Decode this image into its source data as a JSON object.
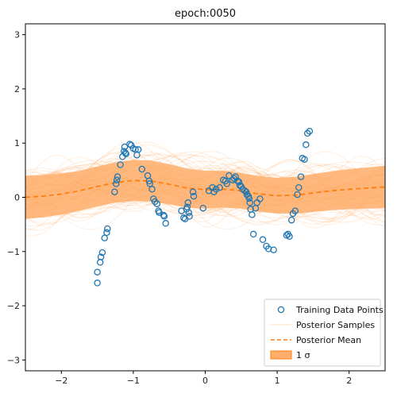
{
  "chart_data": {
    "type": "scatter",
    "title": "epoch:0050",
    "xlabel": "",
    "ylabel": "",
    "xlim": [
      -2.5,
      2.5
    ],
    "ylim": [
      -3.2,
      3.2
    ],
    "xticks": [
      -2,
      -1,
      0,
      1,
      2
    ],
    "yticks": [
      -3,
      -2,
      -1,
      0,
      1,
      2,
      3
    ],
    "grid": false,
    "legend_position": "lower-right",
    "colors": {
      "training_points": "#1f77b4",
      "posterior_samples": "#ff7f0e",
      "posterior_mean": "#ff7f0e",
      "band": "#ffae6b"
    },
    "series": [
      {
        "name": "Training Data Points",
        "kind": "scatter",
        "points": [
          [
            -1.5,
            -1.58
          ],
          [
            -1.5,
            -1.38
          ],
          [
            -1.46,
            -1.2
          ],
          [
            -1.45,
            -1.1
          ],
          [
            -1.43,
            -1.02
          ],
          [
            -1.4,
            -0.75
          ],
          [
            -1.37,
            -0.65
          ],
          [
            -1.36,
            -0.58
          ],
          [
            -1.26,
            0.1
          ],
          [
            -1.24,
            0.25
          ],
          [
            -1.23,
            0.32
          ],
          [
            -1.22,
            0.38
          ],
          [
            -1.18,
            0.6
          ],
          [
            -1.15,
            0.75
          ],
          [
            -1.13,
            0.85
          ],
          [
            -1.12,
            0.93
          ],
          [
            -1.11,
            0.82
          ],
          [
            -1.1,
            0.8
          ],
          [
            -1.05,
            0.98
          ],
          [
            -1.03,
            0.96
          ],
          [
            -1.0,
            0.9
          ],
          [
            -0.97,
            0.88
          ],
          [
            -0.95,
            0.78
          ],
          [
            -0.93,
            0.88
          ],
          [
            -0.88,
            0.52
          ],
          [
            -0.8,
            0.4
          ],
          [
            -0.78,
            0.3
          ],
          [
            -0.77,
            0.25
          ],
          [
            -0.74,
            0.15
          ],
          [
            -0.72,
            -0.03
          ],
          [
            -0.7,
            -0.08
          ],
          [
            -0.67,
            -0.12
          ],
          [
            -0.65,
            -0.25
          ],
          [
            -0.64,
            -0.28
          ],
          [
            -0.58,
            -0.33
          ],
          [
            -0.57,
            -0.35
          ],
          [
            -0.55,
            -0.48
          ],
          [
            -0.33,
            -0.25
          ],
          [
            -0.3,
            -0.38
          ],
          [
            -0.28,
            -0.4
          ],
          [
            -0.26,
            -0.22
          ],
          [
            -0.25,
            -0.18
          ],
          [
            -0.24,
            -0.1
          ],
          [
            -0.23,
            -0.28
          ],
          [
            -0.22,
            -0.35
          ],
          [
            -0.17,
            0.1
          ],
          [
            -0.16,
            0.02
          ],
          [
            -0.03,
            -0.2
          ],
          [
            0.05,
            0.12
          ],
          [
            0.1,
            0.18
          ],
          [
            0.12,
            0.1
          ],
          [
            0.15,
            0.15
          ],
          [
            0.2,
            0.18
          ],
          [
            0.25,
            0.32
          ],
          [
            0.28,
            0.3
          ],
          [
            0.3,
            0.25
          ],
          [
            0.33,
            0.4
          ],
          [
            0.38,
            0.32
          ],
          [
            0.4,
            0.35
          ],
          [
            0.42,
            0.38
          ],
          [
            0.45,
            0.3
          ],
          [
            0.47,
            0.28
          ],
          [
            0.48,
            0.22
          ],
          [
            0.5,
            0.2
          ],
          [
            0.52,
            0.15
          ],
          [
            0.55,
            0.12
          ],
          [
            0.57,
            0.1
          ],
          [
            0.58,
            0.05
          ],
          [
            0.6,
            0.02
          ],
          [
            0.61,
            -0.02
          ],
          [
            0.62,
            -0.1
          ],
          [
            0.63,
            -0.22
          ],
          [
            0.65,
            -0.32
          ],
          [
            0.67,
            -0.68
          ],
          [
            0.7,
            -0.2
          ],
          [
            0.72,
            -0.1
          ],
          [
            0.76,
            -0.03
          ],
          [
            0.8,
            -0.78
          ],
          [
            0.85,
            -0.9
          ],
          [
            0.88,
            -0.95
          ],
          [
            0.95,
            -0.97
          ],
          [
            1.13,
            -0.7
          ],
          [
            1.15,
            -0.68
          ],
          [
            1.17,
            -0.72
          ],
          [
            1.2,
            -0.42
          ],
          [
            1.22,
            -0.3
          ],
          [
            1.25,
            -0.25
          ],
          [
            1.28,
            0.05
          ],
          [
            1.3,
            0.18
          ],
          [
            1.33,
            0.38
          ],
          [
            1.35,
            0.72
          ],
          [
            1.38,
            0.7
          ],
          [
            1.4,
            0.97
          ],
          [
            1.42,
            1.18
          ],
          [
            1.45,
            1.22
          ]
        ]
      },
      {
        "name": "Posterior Samples",
        "kind": "sample-lines",
        "count": 100
      },
      {
        "name": "Posterior Mean",
        "kind": "dashed-line",
        "points": [
          [
            -2.5,
            0.0
          ],
          [
            -2.25,
            0.02
          ],
          [
            -2.0,
            0.06
          ],
          [
            -1.75,
            0.12
          ],
          [
            -1.5,
            0.2
          ],
          [
            -1.25,
            0.27
          ],
          [
            -1.0,
            0.31
          ],
          [
            -0.75,
            0.3
          ],
          [
            -0.5,
            0.24
          ],
          [
            -0.25,
            0.17
          ],
          [
            0.0,
            0.14
          ],
          [
            0.25,
            0.15
          ],
          [
            0.5,
            0.12
          ],
          [
            0.75,
            0.06
          ],
          [
            1.0,
            0.03
          ],
          [
            1.25,
            0.04
          ],
          [
            1.5,
            0.08
          ],
          [
            1.75,
            0.12
          ],
          [
            2.0,
            0.15
          ],
          [
            2.25,
            0.17
          ],
          [
            2.5,
            0.19
          ]
        ]
      },
      {
        "name": "1 σ",
        "kind": "band",
        "half_width": [
          0.4,
          0.39,
          0.38,
          0.37,
          0.37,
          0.37,
          0.38,
          0.38,
          0.37,
          0.36,
          0.35,
          0.34,
          0.33,
          0.33,
          0.33,
          0.34,
          0.35,
          0.36,
          0.37,
          0.38,
          0.39
        ]
      }
    ],
    "legend": [
      "Training Data Points",
      "Posterior Samples",
      "Posterior Mean",
      "1 σ"
    ]
  }
}
